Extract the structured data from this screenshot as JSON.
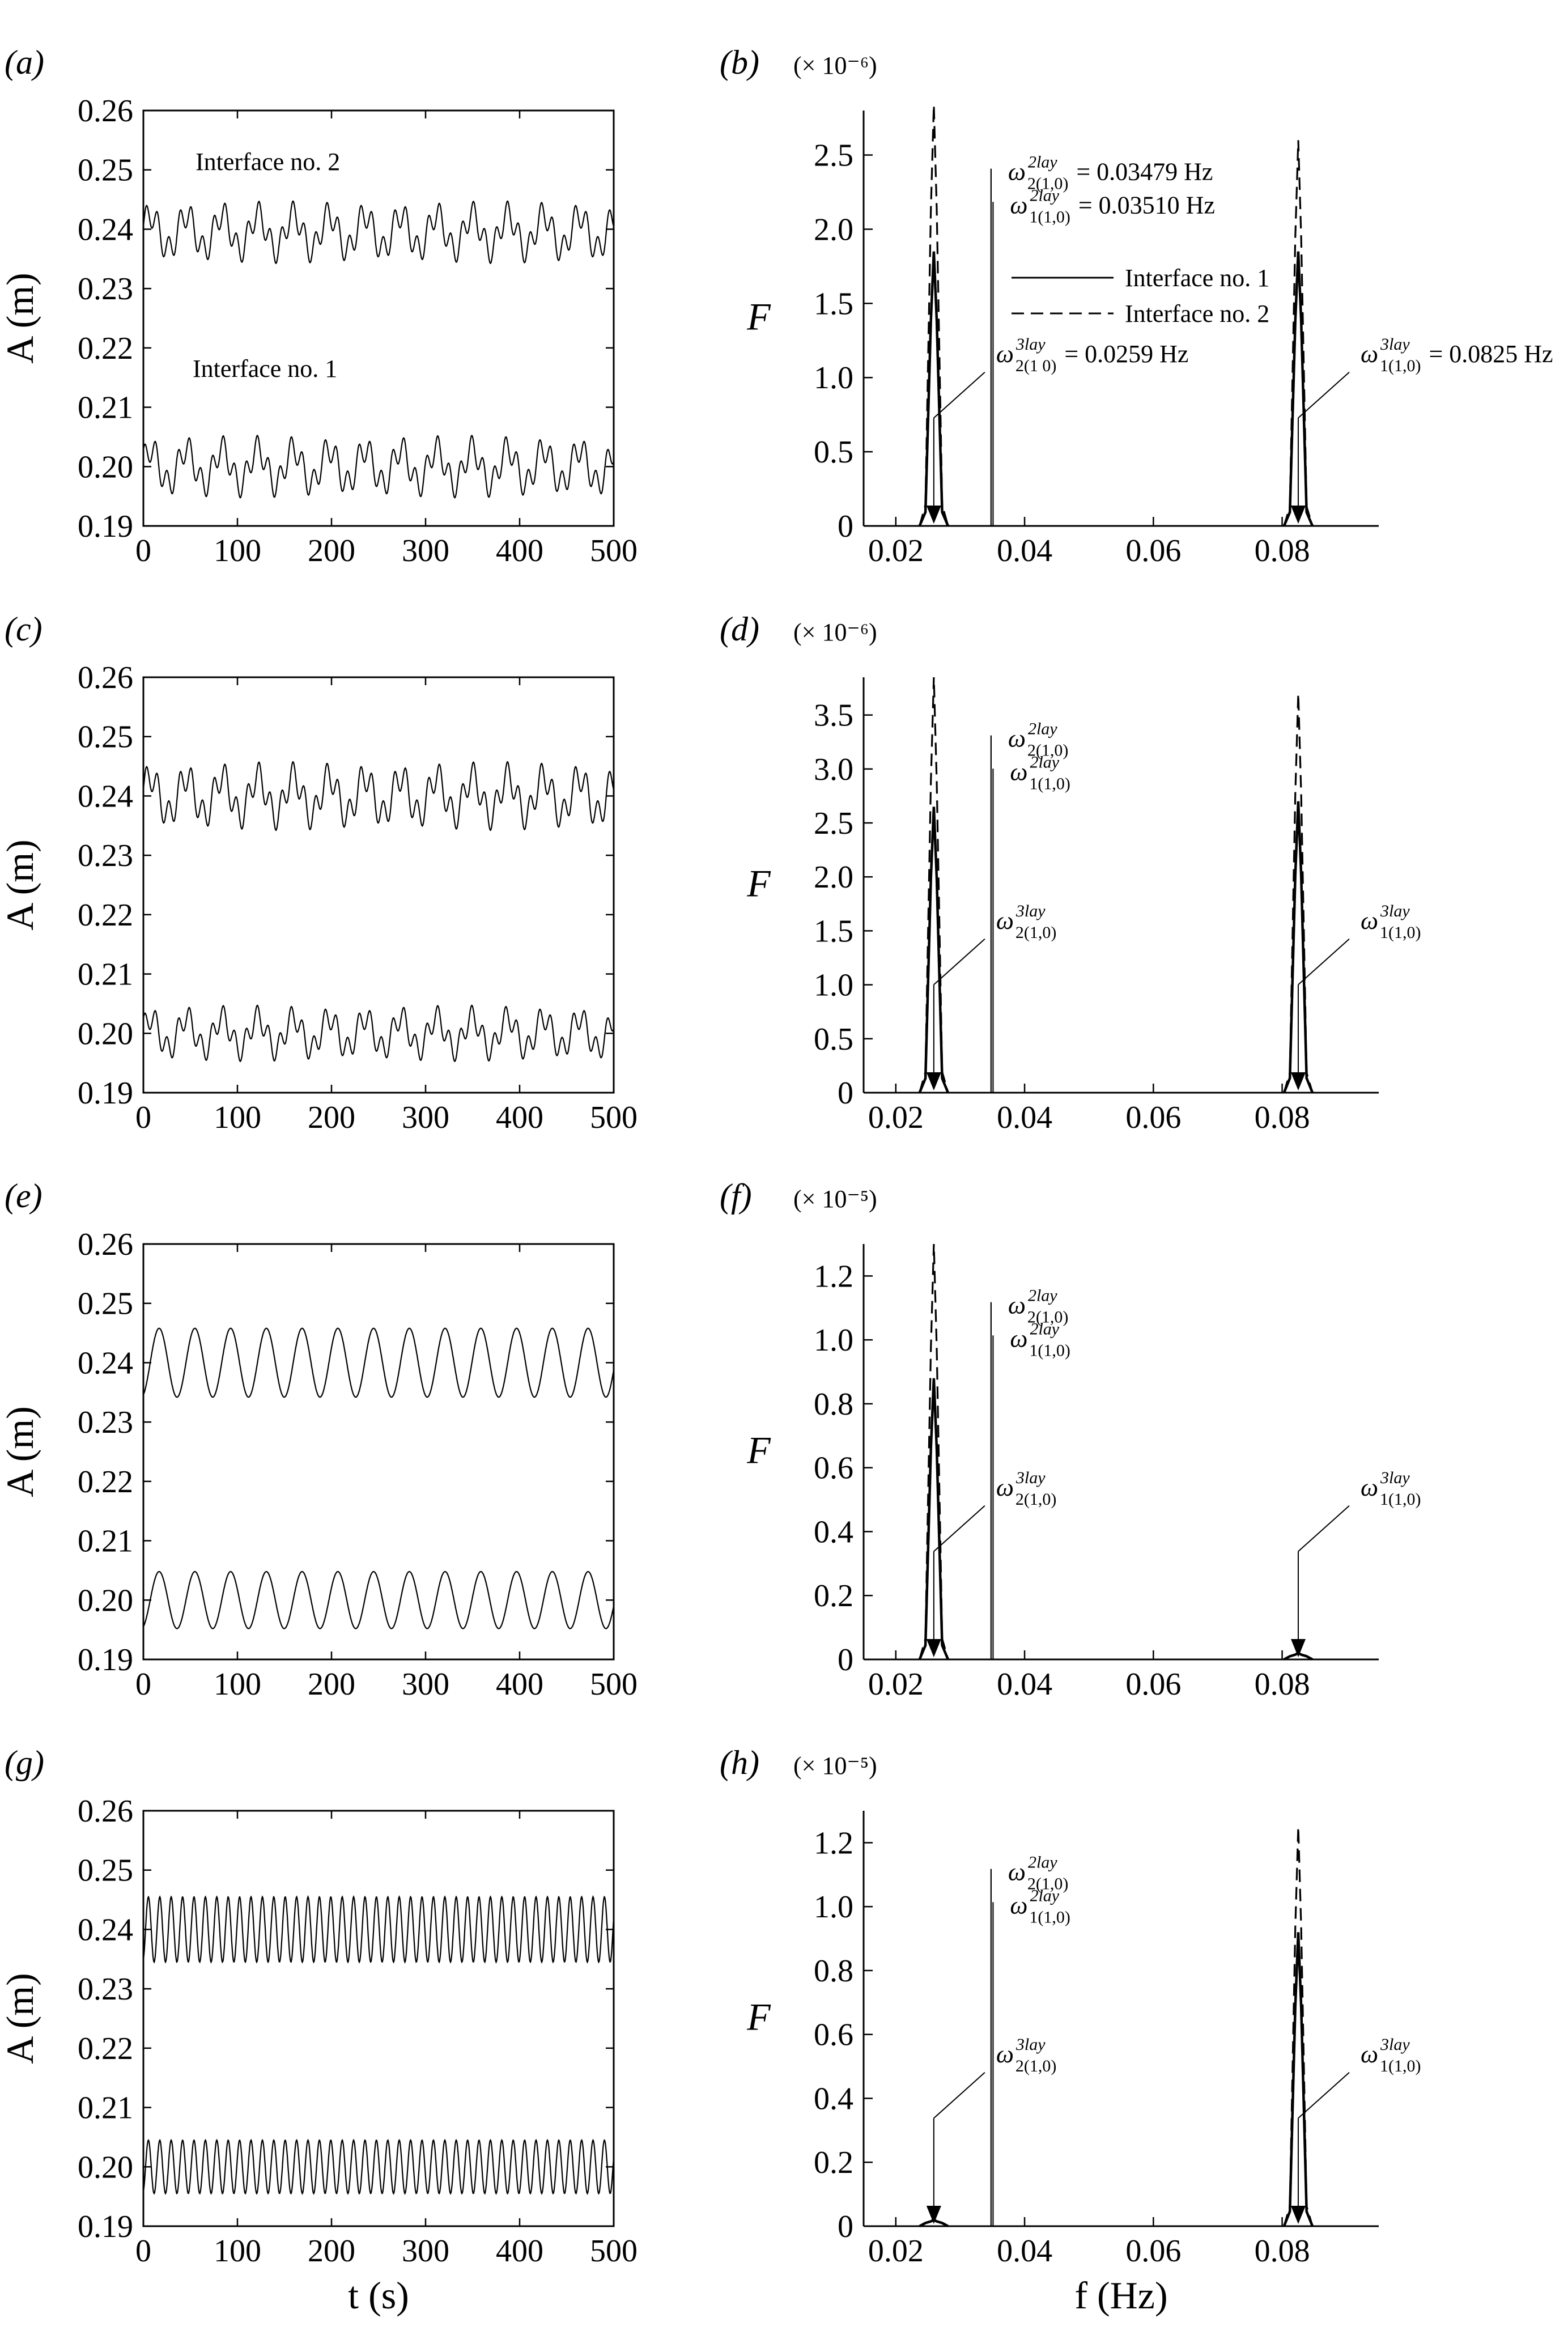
{
  "chart_data": [
    {
      "id": "a",
      "panel_label": "(a)",
      "type": "line",
      "ylabel": "A (m)",
      "xlabel": "",
      "xlim": [
        0,
        500
      ],
      "ylim": [
        0.19,
        0.26
      ],
      "xticks": [
        "0",
        "100",
        "200",
        "300",
        "400",
        "500"
      ],
      "yticks": [
        "0.19",
        "0.20",
        "0.21",
        "0.22",
        "0.23",
        "0.24",
        "0.25",
        "0.26"
      ],
      "text_labels": [
        "Interface no. 2",
        "Interface no. 1"
      ],
      "series": [
        {
          "name": "Interface no. 2",
          "mean": 0.2395,
          "amplitude": 0.005,
          "period_s": 38,
          "harmonic_period_s": 12
        },
        {
          "name": "Interface no. 1",
          "mean": 0.2,
          "amplitude": 0.005,
          "period_s": 38,
          "harmonic_period_s": 12
        }
      ]
    },
    {
      "id": "b",
      "panel_label": "(b)",
      "type": "line",
      "ylabel": "F",
      "xlabel": "",
      "scale": "(× 10⁻⁶)",
      "xlim": [
        0.015,
        0.095
      ],
      "ylim": [
        0,
        2.8
      ],
      "xticks": [
        "0.02",
        "0.04",
        "0.06",
        "0.08"
      ],
      "yticks": [
        "0",
        "0.5",
        "1.0",
        "1.5",
        "2.0",
        "2.5"
      ],
      "legend": [
        "Interface no. 1",
        "Interface no. 2"
      ],
      "series": [
        {
          "name": "Interface no. 1",
          "peaks": [
            {
              "f": 0.0259,
              "F": 1.85
            },
            {
              "f": 0.0825,
              "F": 1.85
            }
          ]
        },
        {
          "name": "Interface no. 2",
          "peaks": [
            {
              "f": 0.0259,
              "F": 2.85
            },
            {
              "f": 0.0825,
              "F": 2.6
            }
          ]
        }
      ],
      "annotations": [
        {
          "label": "ω",
          "sup": "2lay",
          "sub": "2(1,0)",
          "value": "= 0.03479 Hz",
          "f": 0.03479
        },
        {
          "label": "ω",
          "sup": "2lay",
          "sub": "1(1,0)",
          "value": "= 0.03510 Hz",
          "f": 0.0351
        },
        {
          "label": "ω",
          "sup": "3lay",
          "sub": "2(1 0)",
          "value": "= 0.0259 Hz",
          "f": 0.0259
        },
        {
          "label": "ω",
          "sup": "3lay",
          "sub": "1(1,0)",
          "value": "= 0.0825 Hz",
          "f": 0.0825
        }
      ]
    },
    {
      "id": "c",
      "panel_label": "(c)",
      "type": "line",
      "ylabel": "A (m)",
      "xlabel": "",
      "xlim": [
        0,
        500
      ],
      "ylim": [
        0.19,
        0.26
      ],
      "xticks": [
        "0",
        "100",
        "200",
        "300",
        "400",
        "500"
      ],
      "yticks": [
        "0.19",
        "0.20",
        "0.21",
        "0.22",
        "0.23",
        "0.24",
        "0.25",
        "0.26"
      ],
      "series": [
        {
          "name": "Interface no. 2",
          "mean": 0.24,
          "amplitude": 0.0055,
          "period_s": 38,
          "harmonic_period_s": 12
        },
        {
          "name": "Interface no. 1",
          "mean": 0.2,
          "amplitude": 0.0045,
          "period_s": 38,
          "harmonic_period_s": 12
        }
      ]
    },
    {
      "id": "d",
      "panel_label": "(d)",
      "type": "line",
      "ylabel": "F",
      "xlabel": "",
      "scale": "(× 10⁻⁶)",
      "xlim": [
        0.015,
        0.095
      ],
      "ylim": [
        0,
        3.85
      ],
      "xticks": [
        "0.02",
        "0.04",
        "0.06",
        "0.08"
      ],
      "yticks": [
        "0",
        "0.5",
        "1.0",
        "1.5",
        "2.0",
        "2.5",
        "3.0",
        "3.5"
      ],
      "series": [
        {
          "name": "Interface no. 1",
          "peaks": [
            {
              "f": 0.0259,
              "F": 2.65
            },
            {
              "f": 0.0825,
              "F": 2.7
            }
          ]
        },
        {
          "name": "Interface no. 2",
          "peaks": [
            {
              "f": 0.0259,
              "F": 3.85
            },
            {
              "f": 0.0825,
              "F": 3.7
            }
          ]
        }
      ],
      "annotations": [
        {
          "label": "ω",
          "sup": "2lay",
          "sub": "2(1,0)",
          "value": "",
          "f": 0.03479
        },
        {
          "label": "ω",
          "sup": "2lay",
          "sub": "1(1,0)",
          "value": "",
          "f": 0.0351
        },
        {
          "label": "ω",
          "sup": "3lay",
          "sub": "2(1,0)",
          "value": "",
          "f": 0.0259
        },
        {
          "label": "ω",
          "sup": "3lay",
          "sub": "1(1,0)",
          "value": "",
          "f": 0.0825
        }
      ]
    },
    {
      "id": "e",
      "panel_label": "(e)",
      "type": "line",
      "ylabel": "A (m)",
      "xlabel": "",
      "xlim": [
        0,
        500
      ],
      "ylim": [
        0.19,
        0.26
      ],
      "xticks": [
        "0",
        "100",
        "200",
        "300",
        "400",
        "500"
      ],
      "yticks": [
        "0.19",
        "0.20",
        "0.21",
        "0.22",
        "0.23",
        "0.24",
        "0.25",
        "0.26"
      ],
      "series": [
        {
          "name": "Interface no. 2",
          "mean": 0.24,
          "amplitude": 0.0058,
          "period_s": 38,
          "harmonic_period_s": 0
        },
        {
          "name": "Interface no. 1",
          "mean": 0.2,
          "amplitude": 0.0048,
          "period_s": 38,
          "harmonic_period_s": 0
        }
      ]
    },
    {
      "id": "f",
      "panel_label": "(f)",
      "type": "line",
      "ylabel": "F",
      "xlabel": "",
      "scale": "(× 10⁻⁵)",
      "xlim": [
        0.015,
        0.095
      ],
      "ylim": [
        0,
        1.3
      ],
      "xticks": [
        "0.02",
        "0.04",
        "0.06",
        "0.08"
      ],
      "yticks": [
        "0",
        "0.2",
        "0.4",
        "0.6",
        "0.8",
        "1.0",
        "1.2"
      ],
      "series": [
        {
          "name": "Interface no. 1",
          "peaks": [
            {
              "f": 0.0259,
              "F": 0.88
            },
            {
              "f": 0.0825,
              "F": 0.02
            }
          ]
        },
        {
          "name": "Interface no. 2",
          "peaks": [
            {
              "f": 0.0259,
              "F": 1.3
            },
            {
              "f": 0.0825,
              "F": 0.02
            }
          ]
        }
      ],
      "annotations": [
        {
          "label": "ω",
          "sup": "2lay",
          "sub": "2(1,0)",
          "value": "",
          "f": 0.03479
        },
        {
          "label": "ω",
          "sup": "2lay",
          "sub": "1(1,0)",
          "value": "",
          "f": 0.0351
        },
        {
          "label": "ω",
          "sup": "3lay",
          "sub": "2(1,0)",
          "value": "",
          "f": 0.0259
        },
        {
          "label": "ω",
          "sup": "3lay",
          "sub": "1(1,0)",
          "value": "",
          "f": 0.0825
        }
      ]
    },
    {
      "id": "g",
      "panel_label": "(g)",
      "type": "line",
      "ylabel": "A (m)",
      "xlabel": "t (s)",
      "xlim": [
        0,
        500
      ],
      "ylim": [
        0.19,
        0.26
      ],
      "xticks": [
        "0",
        "100",
        "200",
        "300",
        "400",
        "500"
      ],
      "yticks": [
        "0.19",
        "0.20",
        "0.21",
        "0.22",
        "0.23",
        "0.24",
        "0.25",
        "0.26"
      ],
      "series": [
        {
          "name": "Interface no. 2",
          "mean": 0.24,
          "amplitude": 0.0055,
          "period_s": 12.12,
          "harmonic_period_s": 0
        },
        {
          "name": "Interface no. 1",
          "mean": 0.2,
          "amplitude": 0.0045,
          "period_s": 12.12,
          "harmonic_period_s": 0
        }
      ]
    },
    {
      "id": "h",
      "panel_label": "(h)",
      "type": "line",
      "ylabel": "F",
      "xlabel": "f (Hz)",
      "scale": "(× 10⁻⁵)",
      "xlim": [
        0.015,
        0.095
      ],
      "ylim": [
        0,
        1.3
      ],
      "xticks": [
        "0.02",
        "0.04",
        "0.06",
        "0.08"
      ],
      "yticks": [
        "0",
        "0.2",
        "0.4",
        "0.6",
        "0.8",
        "1.0",
        "1.2"
      ],
      "series": [
        {
          "name": "Interface no. 1",
          "peaks": [
            {
              "f": 0.0259,
              "F": 0.02
            },
            {
              "f": 0.0825,
              "F": 0.92
            }
          ]
        },
        {
          "name": "Interface no. 2",
          "peaks": [
            {
              "f": 0.0259,
              "F": 0.02
            },
            {
              "f": 0.0825,
              "F": 1.25
            }
          ]
        }
      ],
      "annotations": [
        {
          "label": "ω",
          "sup": "2lay",
          "sub": "2(1,0)",
          "value": "",
          "f": 0.03479
        },
        {
          "label": "ω",
          "sup": "2lay",
          "sub": "1(1,0)",
          "value": "",
          "f": 0.0351
        },
        {
          "label": "ω",
          "sup": "3lay",
          "sub": "2(1,0)",
          "value": "",
          "f": 0.0259
        },
        {
          "label": "ω",
          "sup": "3lay",
          "sub": "1(1,0)",
          "value": "",
          "f": 0.0825
        }
      ]
    }
  ]
}
